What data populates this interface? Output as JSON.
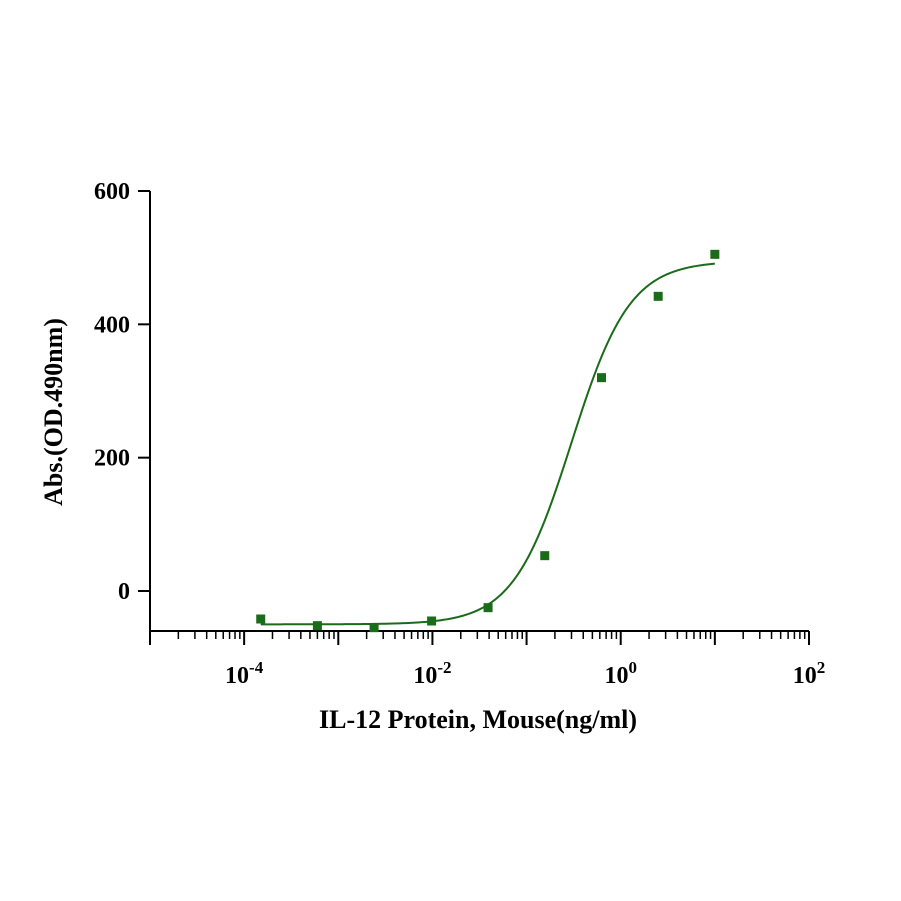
{
  "chart_data": {
    "type": "scatter",
    "xlabel": "IL-12 Protein, Mouse(ng/ml)",
    "ylabel": "Abs.(OD.490nm)",
    "x_scale": "log10",
    "xlim": [
      1e-05,
      100
    ],
    "ylim": [
      -60,
      600
    ],
    "y_ticks": [
      0,
      200,
      400,
      600
    ],
    "x_ticks": [
      {
        "value": 0.0001,
        "base": "10",
        "exp": "-4"
      },
      {
        "value": 0.01,
        "base": "10",
        "exp": "-2"
      },
      {
        "value": 1,
        "base": "10",
        "exp": "0"
      },
      {
        "value": 100,
        "base": "10",
        "exp": "2"
      }
    ],
    "series": [
      {
        "color": "#1a6b1a",
        "x": [
          0.00015,
          0.0006,
          0.0024,
          0.0098,
          0.039,
          0.156,
          0.625,
          2.5,
          10
        ],
        "y": [
          -42,
          -52,
          -55,
          -45,
          -25,
          53,
          320,
          442,
          505
        ]
      }
    ],
    "fit_curve": {
      "model": "4PL",
      "bottom": -50,
      "top": 495,
      "ec50": 0.3,
      "hill": 1.4,
      "x_range": [
        0.00015,
        10
      ],
      "color": "#1a6b1a"
    },
    "grid": false,
    "legend": "none"
  }
}
